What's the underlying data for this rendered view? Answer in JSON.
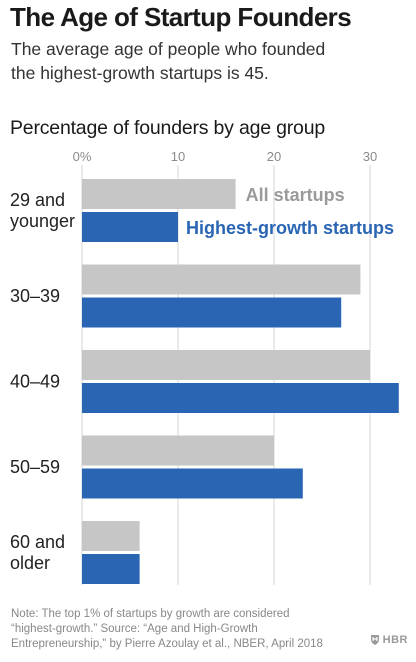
{
  "title": "The Age of Startup Founders",
  "subtitle_lines": [
    "The average age of people who founded",
    "the highest-growth startups is 45."
  ],
  "chart_heading": "Percentage of founders by age group",
  "note_lines": [
    "Note: The top 1% of startups by growth are considered",
    "“highest-growth.” Source: “Age and High-Growth",
    "Entrepreneurship,” by Pierre Azoulay et al., NBER, April 2018"
  ],
  "logo_text": "HBR",
  "colors": {
    "all_startups": "#c6c6c6",
    "highest_growth": "#2a65b4",
    "gridline": "#d4d4d4",
    "tick_label": "#8a8a8a"
  },
  "chart_data": {
    "type": "bar",
    "orientation": "horizontal",
    "title": "Percentage of founders by age group",
    "categories": [
      [
        "29 and",
        "younger"
      ],
      [
        "30–39"
      ],
      [
        "40–49"
      ],
      [
        "50–59"
      ],
      [
        "60 and",
        "older"
      ]
    ],
    "series": [
      {
        "name": "All startups",
        "values": [
          16,
          29,
          30,
          20,
          6
        ]
      },
      {
        "name": "Highest-growth startups",
        "values": [
          10,
          27,
          33,
          23,
          6
        ]
      }
    ],
    "xlim": [
      0,
      33
    ],
    "xticks": [
      0,
      10,
      20,
      30
    ],
    "xtick_labels": [
      "0%",
      "10",
      "20",
      "30"
    ],
    "grid": true,
    "legend": "inline next to first category bars"
  }
}
